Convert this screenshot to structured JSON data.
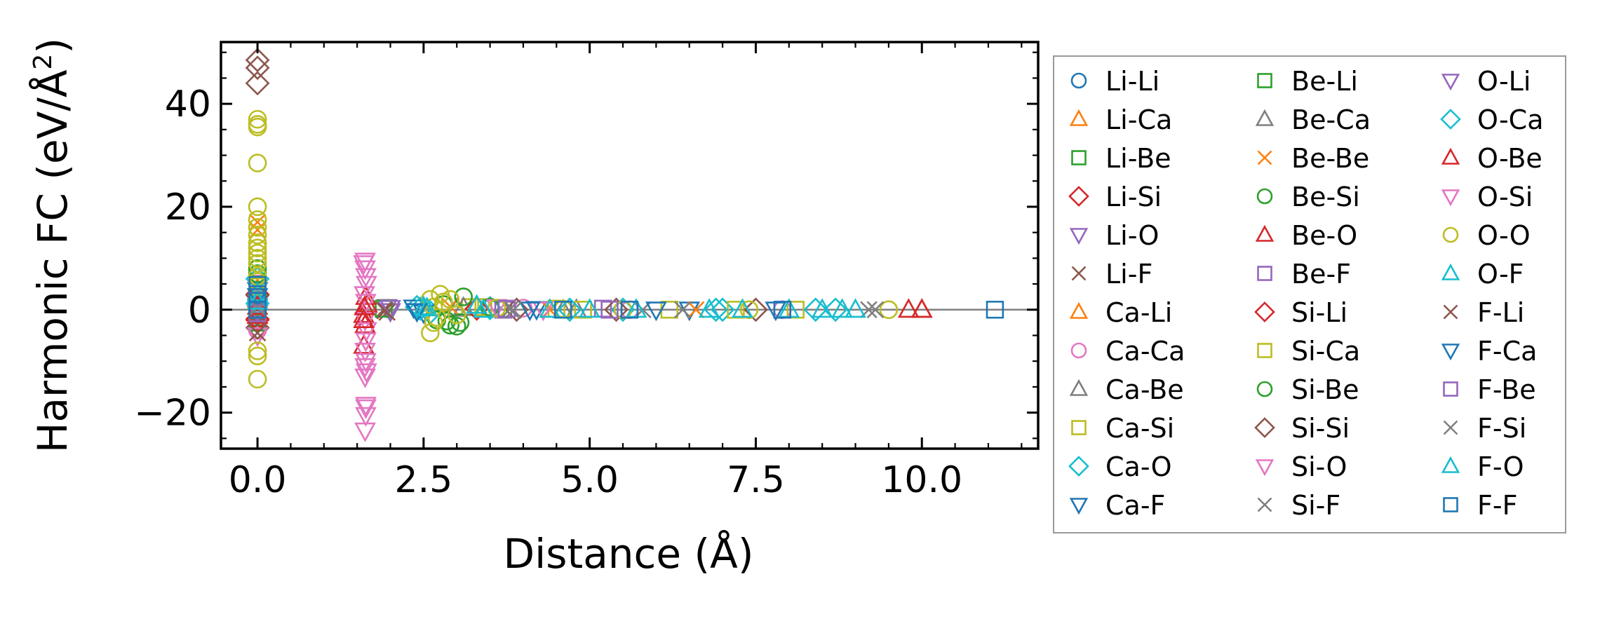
{
  "chart_data": {
    "type": "scatter",
    "title": "",
    "xlabel": "Distance (Å)",
    "ylabel": "Harmonic FC (eV/Å",
    "ylabel_sup": "2",
    "ylabel_close": ")",
    "xlim": [
      -0.55,
      11.75
    ],
    "ylim": [
      -27,
      52
    ],
    "xticks": [
      0.0,
      2.5,
      5.0,
      7.5,
      10.0
    ],
    "xtick_labels": [
      "0.0",
      "2.5",
      "5.0",
      "7.5",
      "10.0"
    ],
    "yticks": [
      -20,
      0,
      20,
      40
    ],
    "ytick_labels": [
      "−20",
      "0",
      "20",
      "40"
    ],
    "legend_position": "outside-right",
    "legend_columns": 3,
    "series": [
      {
        "name": "Li-Li",
        "marker": "circle",
        "color": "#1f77b4",
        "points": [
          [
            0,
            1.5
          ],
          [
            0,
            -0.5
          ],
          [
            0,
            0.2
          ]
        ]
      },
      {
        "name": "Li-Ca",
        "marker": "triangle-up",
        "color": "#ff7f0e",
        "points": [
          [
            0,
            2.0
          ],
          [
            0,
            -1.0
          ]
        ]
      },
      {
        "name": "Li-Be",
        "marker": "square",
        "color": "#2ca02c",
        "points": [
          [
            0,
            0.5
          ],
          [
            0,
            -1.5
          ]
        ]
      },
      {
        "name": "Li-Si",
        "marker": "diamond",
        "color": "#d62728",
        "points": [
          [
            0,
            3.0
          ],
          [
            0,
            -2.0
          ]
        ]
      },
      {
        "name": "Li-O",
        "marker": "triangle-down",
        "color": "#9467bd",
        "points": [
          [
            0,
            1.0
          ],
          [
            1.95,
            0.5
          ],
          [
            2.0,
            -0.3
          ]
        ]
      },
      {
        "name": "Li-F",
        "marker": "x",
        "color": "#8c564b",
        "points": [
          [
            0,
            -3.0
          ],
          [
            1.9,
            0.0
          ],
          [
            1.95,
            -0.5
          ]
        ]
      },
      {
        "name": "Ca-Li",
        "marker": "triangle-up",
        "color": "#ff7f0e",
        "points": [
          [
            0,
            4.0
          ],
          [
            0,
            -0.8
          ]
        ]
      },
      {
        "name": "Ca-Ca",
        "marker": "circle",
        "color": "#e377c2",
        "points": [
          [
            0,
            5.0
          ],
          [
            0,
            -4.0
          ],
          [
            4.0,
            0.3
          ],
          [
            5.6,
            0.0
          ],
          [
            7.9,
            0.0
          ]
        ]
      },
      {
        "name": "Ca-Be",
        "marker": "triangle-up",
        "color": "#7f7f7f",
        "points": [
          [
            0,
            3.5
          ],
          [
            3.0,
            0.2
          ],
          [
            4.6,
            -0.1
          ]
        ]
      },
      {
        "name": "Ca-Si",
        "marker": "square",
        "color": "#bcbd22",
        "points": [
          [
            0,
            2.5
          ],
          [
            3.2,
            0.5
          ],
          [
            4.5,
            0.2
          ],
          [
            6.2,
            0.0
          ],
          [
            8.1,
            0.0
          ]
        ]
      },
      {
        "name": "Ca-O",
        "marker": "diamond",
        "color": "#17becf",
        "points": [
          [
            0,
            6.0
          ],
          [
            2.4,
            0.5
          ],
          [
            2.6,
            -0.5
          ],
          [
            3.5,
            0.3
          ],
          [
            5.5,
            0.0
          ],
          [
            7.0,
            0.0
          ],
          [
            8.7,
            0.0
          ]
        ]
      },
      {
        "name": "Ca-F",
        "marker": "triangle-down",
        "color": "#1f77b4",
        "points": [
          [
            0,
            3.8
          ],
          [
            2.35,
            0.4
          ],
          [
            2.5,
            -0.6
          ],
          [
            4.2,
            0.1
          ],
          [
            6.5,
            0.0
          ]
        ]
      },
      {
        "name": "Be-Li",
        "marker": "square",
        "color": "#2ca02c",
        "points": [
          [
            0,
            -2.5
          ],
          [
            1.9,
            0.2
          ]
        ]
      },
      {
        "name": "Be-Ca",
        "marker": "triangle-up",
        "color": "#7f7f7f",
        "points": [
          [
            0,
            2.2
          ],
          [
            3.1,
            0.4
          ],
          [
            4.8,
            0.0
          ]
        ]
      },
      {
        "name": "Be-Be",
        "marker": "x",
        "color": "#ff7f0e",
        "points": [
          [
            0,
            17.0
          ],
          [
            0,
            15.5
          ],
          [
            2.9,
            0.6
          ],
          [
            4.4,
            0.0
          ],
          [
            6.6,
            0.0
          ]
        ]
      },
      {
        "name": "Be-Si",
        "marker": "circle",
        "color": "#2ca02c",
        "points": [
          [
            0,
            7.0
          ],
          [
            2.7,
            -2.0
          ],
          [
            2.9,
            -3.0
          ],
          [
            3.05,
            -2.5
          ],
          [
            2.8,
            1.0
          ]
        ]
      },
      {
        "name": "Be-O",
        "marker": "triangle-up",
        "color": "#d62728",
        "points": [
          [
            0,
            -1.2
          ],
          [
            1.6,
            -1.0
          ],
          [
            1.62,
            -3.0
          ],
          [
            1.65,
            1.0
          ],
          [
            1.6,
            -7.0
          ],
          [
            1.63,
            2.5
          ],
          [
            10.0,
            0.0
          ]
        ]
      },
      {
        "name": "Be-F",
        "marker": "square",
        "color": "#9467bd",
        "points": [
          [
            0,
            1.8
          ],
          [
            3.7,
            0.0
          ],
          [
            5.2,
            0.2
          ]
        ]
      },
      {
        "name": "Si-Li",
        "marker": "diamond",
        "color": "#d62728",
        "points": [
          [
            0,
            -1.8
          ],
          [
            3.3,
            0.2
          ]
        ]
      },
      {
        "name": "Si-Ca",
        "marker": "square",
        "color": "#bcbd22",
        "points": [
          [
            0,
            4.5
          ],
          [
            3.4,
            0.5
          ],
          [
            4.9,
            0.0
          ],
          [
            7.2,
            0.0
          ]
        ]
      },
      {
        "name": "Si-Be",
        "marker": "circle",
        "color": "#2ca02c",
        "points": [
          [
            0,
            8.0
          ],
          [
            2.85,
            -2.2
          ],
          [
            3.0,
            -3.2
          ],
          [
            3.1,
            2.5
          ],
          [
            3.5,
            0.5
          ]
        ]
      },
      {
        "name": "Si-Si",
        "marker": "diamond",
        "color": "#8c564b",
        "points": [
          [
            0,
            48.5
          ],
          [
            0,
            47.0
          ],
          [
            0,
            44.0
          ],
          [
            0,
            -3.5
          ],
          [
            0,
            2.8
          ],
          [
            3.9,
            0.0
          ],
          [
            5.4,
            0.0
          ],
          [
            7.5,
            0.0
          ]
        ]
      },
      {
        "name": "Si-O",
        "marker": "triangle-down",
        "color": "#e377c2",
        "points": [
          [
            1.62,
            9.5
          ],
          [
            1.62,
            8.0
          ],
          [
            1.63,
            6.5
          ],
          [
            1.64,
            5.0
          ],
          [
            1.61,
            3.0
          ],
          [
            1.63,
            1.5
          ],
          [
            1.62,
            -2.0
          ],
          [
            1.64,
            -4.0
          ],
          [
            1.63,
            -6.0
          ],
          [
            1.62,
            -8.0
          ],
          [
            1.63,
            -10.0
          ],
          [
            1.64,
            -12.0
          ],
          [
            1.62,
            -13.0
          ],
          [
            1.63,
            -19.0
          ],
          [
            1.63,
            -20.5
          ],
          [
            1.62,
            -23.5
          ],
          [
            3.6,
            0.5
          ],
          [
            4.3,
            0.0
          ]
        ]
      },
      {
        "name": "Si-F",
        "marker": "x",
        "color": "#7f7f7f",
        "points": [
          [
            0,
            0.8
          ],
          [
            3.8,
            0.1
          ],
          [
            5.8,
            0.0
          ],
          [
            9.2,
            0.0
          ]
        ]
      },
      {
        "name": "O-Li",
        "marker": "triangle-down",
        "color": "#9467bd",
        "points": [
          [
            0,
            -0.3
          ],
          [
            2.0,
            0.3
          ]
        ]
      },
      {
        "name": "O-Ca",
        "marker": "diamond",
        "color": "#17becf",
        "points": [
          [
            0,
            1.2
          ],
          [
            2.45,
            0.2
          ],
          [
            4.7,
            0.0
          ],
          [
            6.9,
            0.0
          ],
          [
            8.4,
            0.0
          ]
        ]
      },
      {
        "name": "O-Be",
        "marker": "triangle-up",
        "color": "#d62728",
        "points": [
          [
            0,
            0.6
          ],
          [
            1.6,
            -2.0
          ],
          [
            1.61,
            0.5
          ],
          [
            9.8,
            0.0
          ],
          [
            10.0,
            0.0
          ]
        ]
      },
      {
        "name": "O-Si",
        "marker": "triangle-down",
        "color": "#e377c2",
        "points": [
          [
            0,
            -5.0
          ],
          [
            1.6,
            9.0
          ],
          [
            1.62,
            -11.0
          ],
          [
            1.63,
            -18.5
          ]
        ]
      },
      {
        "name": "O-O",
        "marker": "circle",
        "color": "#bcbd22",
        "points": [
          [
            0,
            37.0
          ],
          [
            0,
            35.5
          ],
          [
            0,
            36.0
          ],
          [
            0,
            28.5
          ],
          [
            0,
            20.0
          ],
          [
            0,
            17.5
          ],
          [
            0,
            16.0
          ],
          [
            0,
            14.5
          ],
          [
            0,
            13.0
          ],
          [
            0,
            12.0
          ],
          [
            0,
            11.0
          ],
          [
            0,
            10.0
          ],
          [
            0,
            9.0
          ],
          [
            0,
            6.5
          ],
          [
            0,
            5.5
          ],
          [
            0,
            -8.0
          ],
          [
            0,
            -9.0
          ],
          [
            0,
            -13.5
          ],
          [
            2.6,
            2.0
          ],
          [
            2.65,
            0.5
          ],
          [
            2.7,
            -1.5
          ],
          [
            2.65,
            -2.5
          ],
          [
            2.6,
            -4.5
          ],
          [
            2.75,
            3.0
          ],
          [
            2.8,
            1.5
          ],
          [
            2.9,
            2.0
          ],
          [
            3.0,
            -1.0
          ],
          [
            3.6,
            0.3
          ],
          [
            4.6,
            0.1
          ],
          [
            5.5,
            0.0
          ],
          [
            7.4,
            0.0
          ],
          [
            9.5,
            0.0
          ]
        ]
      },
      {
        "name": "O-F",
        "marker": "triangle-up",
        "color": "#17becf",
        "points": [
          [
            0,
            3.2
          ],
          [
            2.5,
            0.5
          ],
          [
            3.3,
            0.8
          ],
          [
            4.4,
            0.0
          ],
          [
            5.7,
            0.0
          ],
          [
            6.8,
            0.0
          ],
          [
            8.0,
            0.0
          ],
          [
            8.8,
            0.0
          ]
        ]
      },
      {
        "name": "F-Li",
        "marker": "x",
        "color": "#8c564b",
        "points": [
          [
            0,
            -4.5
          ],
          [
            1.92,
            -0.2
          ]
        ]
      },
      {
        "name": "F-Ca",
        "marker": "triangle-down",
        "color": "#1f77b4",
        "points": [
          [
            0,
            2.6
          ],
          [
            2.4,
            -0.3
          ],
          [
            4.1,
            0.0
          ],
          [
            6.0,
            0.0
          ],
          [
            7.8,
            0.0
          ]
        ]
      },
      {
        "name": "F-Be",
        "marker": "square",
        "color": "#9467bd",
        "points": [
          [
            0,
            -0.7
          ],
          [
            3.75,
            0.2
          ],
          [
            5.3,
            0.0
          ]
        ]
      },
      {
        "name": "F-Si",
        "marker": "x",
        "color": "#7f7f7f",
        "points": [
          [
            0,
            0.4
          ],
          [
            3.85,
            -0.1
          ],
          [
            6.4,
            0.0
          ],
          [
            9.3,
            0.0
          ]
        ]
      },
      {
        "name": "F-O",
        "marker": "triangle-up",
        "color": "#17becf",
        "points": [
          [
            0,
            1.6
          ],
          [
            2.55,
            0.3
          ],
          [
            3.4,
            0.0
          ],
          [
            5.0,
            0.0
          ],
          [
            7.3,
            0.0
          ],
          [
            8.5,
            0.0
          ],
          [
            9.0,
            0.0
          ]
        ]
      },
      {
        "name": "F-F",
        "marker": "square",
        "color": "#1f77b4",
        "points": [
          [
            0,
            4.8
          ],
          [
            0,
            3.0
          ],
          [
            0,
            0.0
          ],
          [
            4.6,
            0.0
          ],
          [
            5.6,
            0.0
          ],
          [
            7.9,
            0.0
          ],
          [
            11.1,
            0.0
          ]
        ]
      }
    ]
  }
}
